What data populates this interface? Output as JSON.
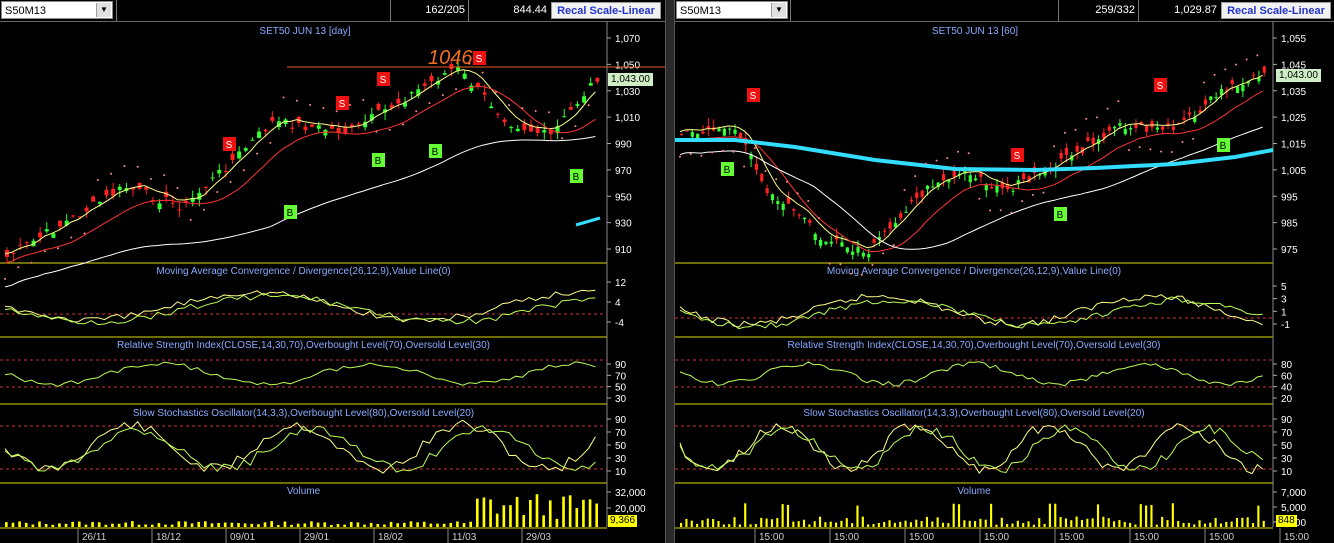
{
  "left": {
    "symbol": "S50M13",
    "counter": "162/205",
    "value": "844.44",
    "recal_label": "Recal Scale-Linear",
    "chart_title": "SET50 JUN 13",
    "interval": "[day]",
    "last_price": "1,043.00",
    "peak_annotation": "1046",
    "price_axis": [
      "1,070",
      "1,050",
      "1,030",
      "1,010",
      "990",
      "970",
      "950",
      "930",
      "910"
    ],
    "macd_title": "Moving Average Convergence / Divergence(26,12,9),Value Line(0)",
    "macd_axis": [
      "12",
      "4",
      "-4"
    ],
    "rsi_title": "Relative Strength Index(CLOSE,14,30,70),Overbought Level(70),Oversold Level(30)",
    "rsi_axis": [
      "90",
      "70",
      "50",
      "30"
    ],
    "stoch_title": "Slow Stochastics Oscillator(14,3,3),Overbought Level(80),Oversold Level(20)",
    "stoch_axis": [
      "90",
      "70",
      "50",
      "30",
      "10"
    ],
    "volume_title": "Volume",
    "volume_axis": [
      "32,000",
      "20,000"
    ],
    "last_volume": "9,366",
    "date_labels": [
      "26/11",
      "18/12",
      "09/01",
      "29/01",
      "18/02",
      "11/03",
      "29/03"
    ]
  },
  "right": {
    "symbol": "S50M13",
    "counter": "259/332",
    "value": "1,029.87",
    "recal_label": "Recal Scale-Linear",
    "chart_title": "SET50 JUN 13",
    "interval": "[60]",
    "last_price": "1,043.00",
    "price_axis": [
      "1,055",
      "1,045",
      "1,035",
      "1,025",
      "1,015",
      "1,005",
      "995",
      "985",
      "975"
    ],
    "macd_title": "Moving Average Convergence / Divergence(26,12,9),Value Line(0)",
    "macd_axis": [
      "5",
      "3",
      "1",
      "-1"
    ],
    "rsi_title": "Relative Strength Index(CLOSE,14,30,70),Overbought Level(70),Oversold Level(30)",
    "rsi_axis": [
      "80",
      "60",
      "40",
      "20"
    ],
    "stoch_title": "Slow Stochastics Oscillator(14,3,3),Overbought Level(80),Oversold Level(20)",
    "stoch_axis": [
      "90",
      "70",
      "50",
      "30",
      "10"
    ],
    "volume_title": "Volume",
    "volume_axis": [
      "7,000",
      "5,000",
      "3,000"
    ],
    "last_volume": "848",
    "date_labels": [
      "15:00",
      "15:00",
      "15:00",
      "15:00",
      "15:00",
      "15:00",
      "15:00",
      "15:00"
    ]
  },
  "colors": {
    "up": "#33ff33",
    "down": "#ff2222",
    "buy": "#66ff33",
    "sell": "#ee1111",
    "axis": "#dddd00",
    "title": "#88aaff",
    "ma_fast": "#ffff88",
    "ma_mid": "#ff3333",
    "ma_slow": "#ffffff",
    "ma_long": "#33ddff",
    "volume": "#ffff00"
  }
}
